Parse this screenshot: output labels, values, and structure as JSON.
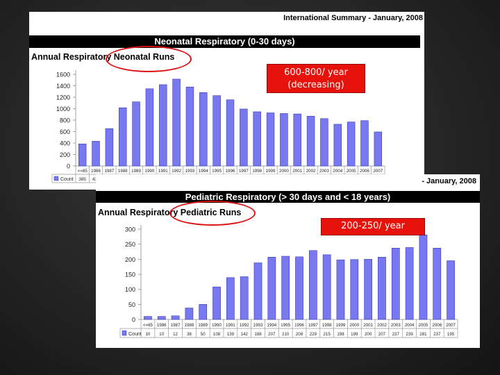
{
  "neonatal": {
    "report_title": "International Summary - January, 2008",
    "section_header": "Neonatal Respiratory (0-30 days)",
    "chart_title": "Annual Respiratory Neonatal Runs",
    "callout_line1": "600-800/ year",
    "callout_line2": "(decreasing)"
  },
  "pediatric": {
    "report_title": "- January, 2008",
    "section_header": "Pediatric Respiratory (> 30 days and < 18 years)",
    "chart_title": "Annual Respiratory Pediatric Runs",
    "callout": "200-250/ year"
  },
  "colors": {
    "bar": "#7878f0",
    "bar_stroke": "#3838b8",
    "callout": "#e8120c",
    "circle": "#dd1111"
  },
  "chart_data": [
    {
      "type": "bar",
      "title": "Annual Respiratory Neonatal Runs",
      "categories": [
        "<=85",
        "1986",
        "1987",
        "1988",
        "1989",
        "1990",
        "1991",
        "1992",
        "1993",
        "1994",
        "1995",
        "1996",
        "1997",
        "1998",
        "1999",
        "2000",
        "2001",
        "2002",
        "2003",
        "2004",
        "2005",
        "2006",
        "2007"
      ],
      "series": [
        {
          "name": "Count",
          "values": [
            385,
            432,
            652,
            1016,
            1119,
            1348,
            1419,
            1516,
            1378,
            1281,
            1228,
            1155,
            994,
            946,
            927,
            916,
            908,
            869,
            827,
            728,
            768,
            791,
            594
          ]
        }
      ],
      "ylim": [
        0,
        1600
      ],
      "yticks": [
        0,
        200,
        400,
        600,
        800,
        1000,
        1200,
        1400,
        1600
      ],
      "grid": false,
      "legend": "data-table"
    },
    {
      "type": "bar",
      "title": "Annual Respiratory Pediatric Runs",
      "categories": [
        "<=85",
        "1986",
        "1987",
        "1988",
        "1989",
        "1990",
        "1991",
        "1992",
        "1993",
        "1994",
        "1995",
        "1996",
        "1997",
        "1998",
        "1999",
        "2000",
        "2001",
        "2002",
        "2003",
        "2004",
        "2005",
        "2006",
        "2007"
      ],
      "series": [
        {
          "name": "Count",
          "values": [
            10,
            10,
            12,
            38,
            50,
            108,
            139,
            142,
            188,
            207,
            210,
            208,
            229,
            215,
            198,
            199,
            200,
            207,
            237,
            239,
            281,
            237,
            195
          ]
        }
      ],
      "ylim": [
        0,
        300
      ],
      "yticks": [
        0,
        50,
        100,
        150,
        200,
        250,
        300
      ],
      "grid": false,
      "legend": "data-table"
    }
  ]
}
